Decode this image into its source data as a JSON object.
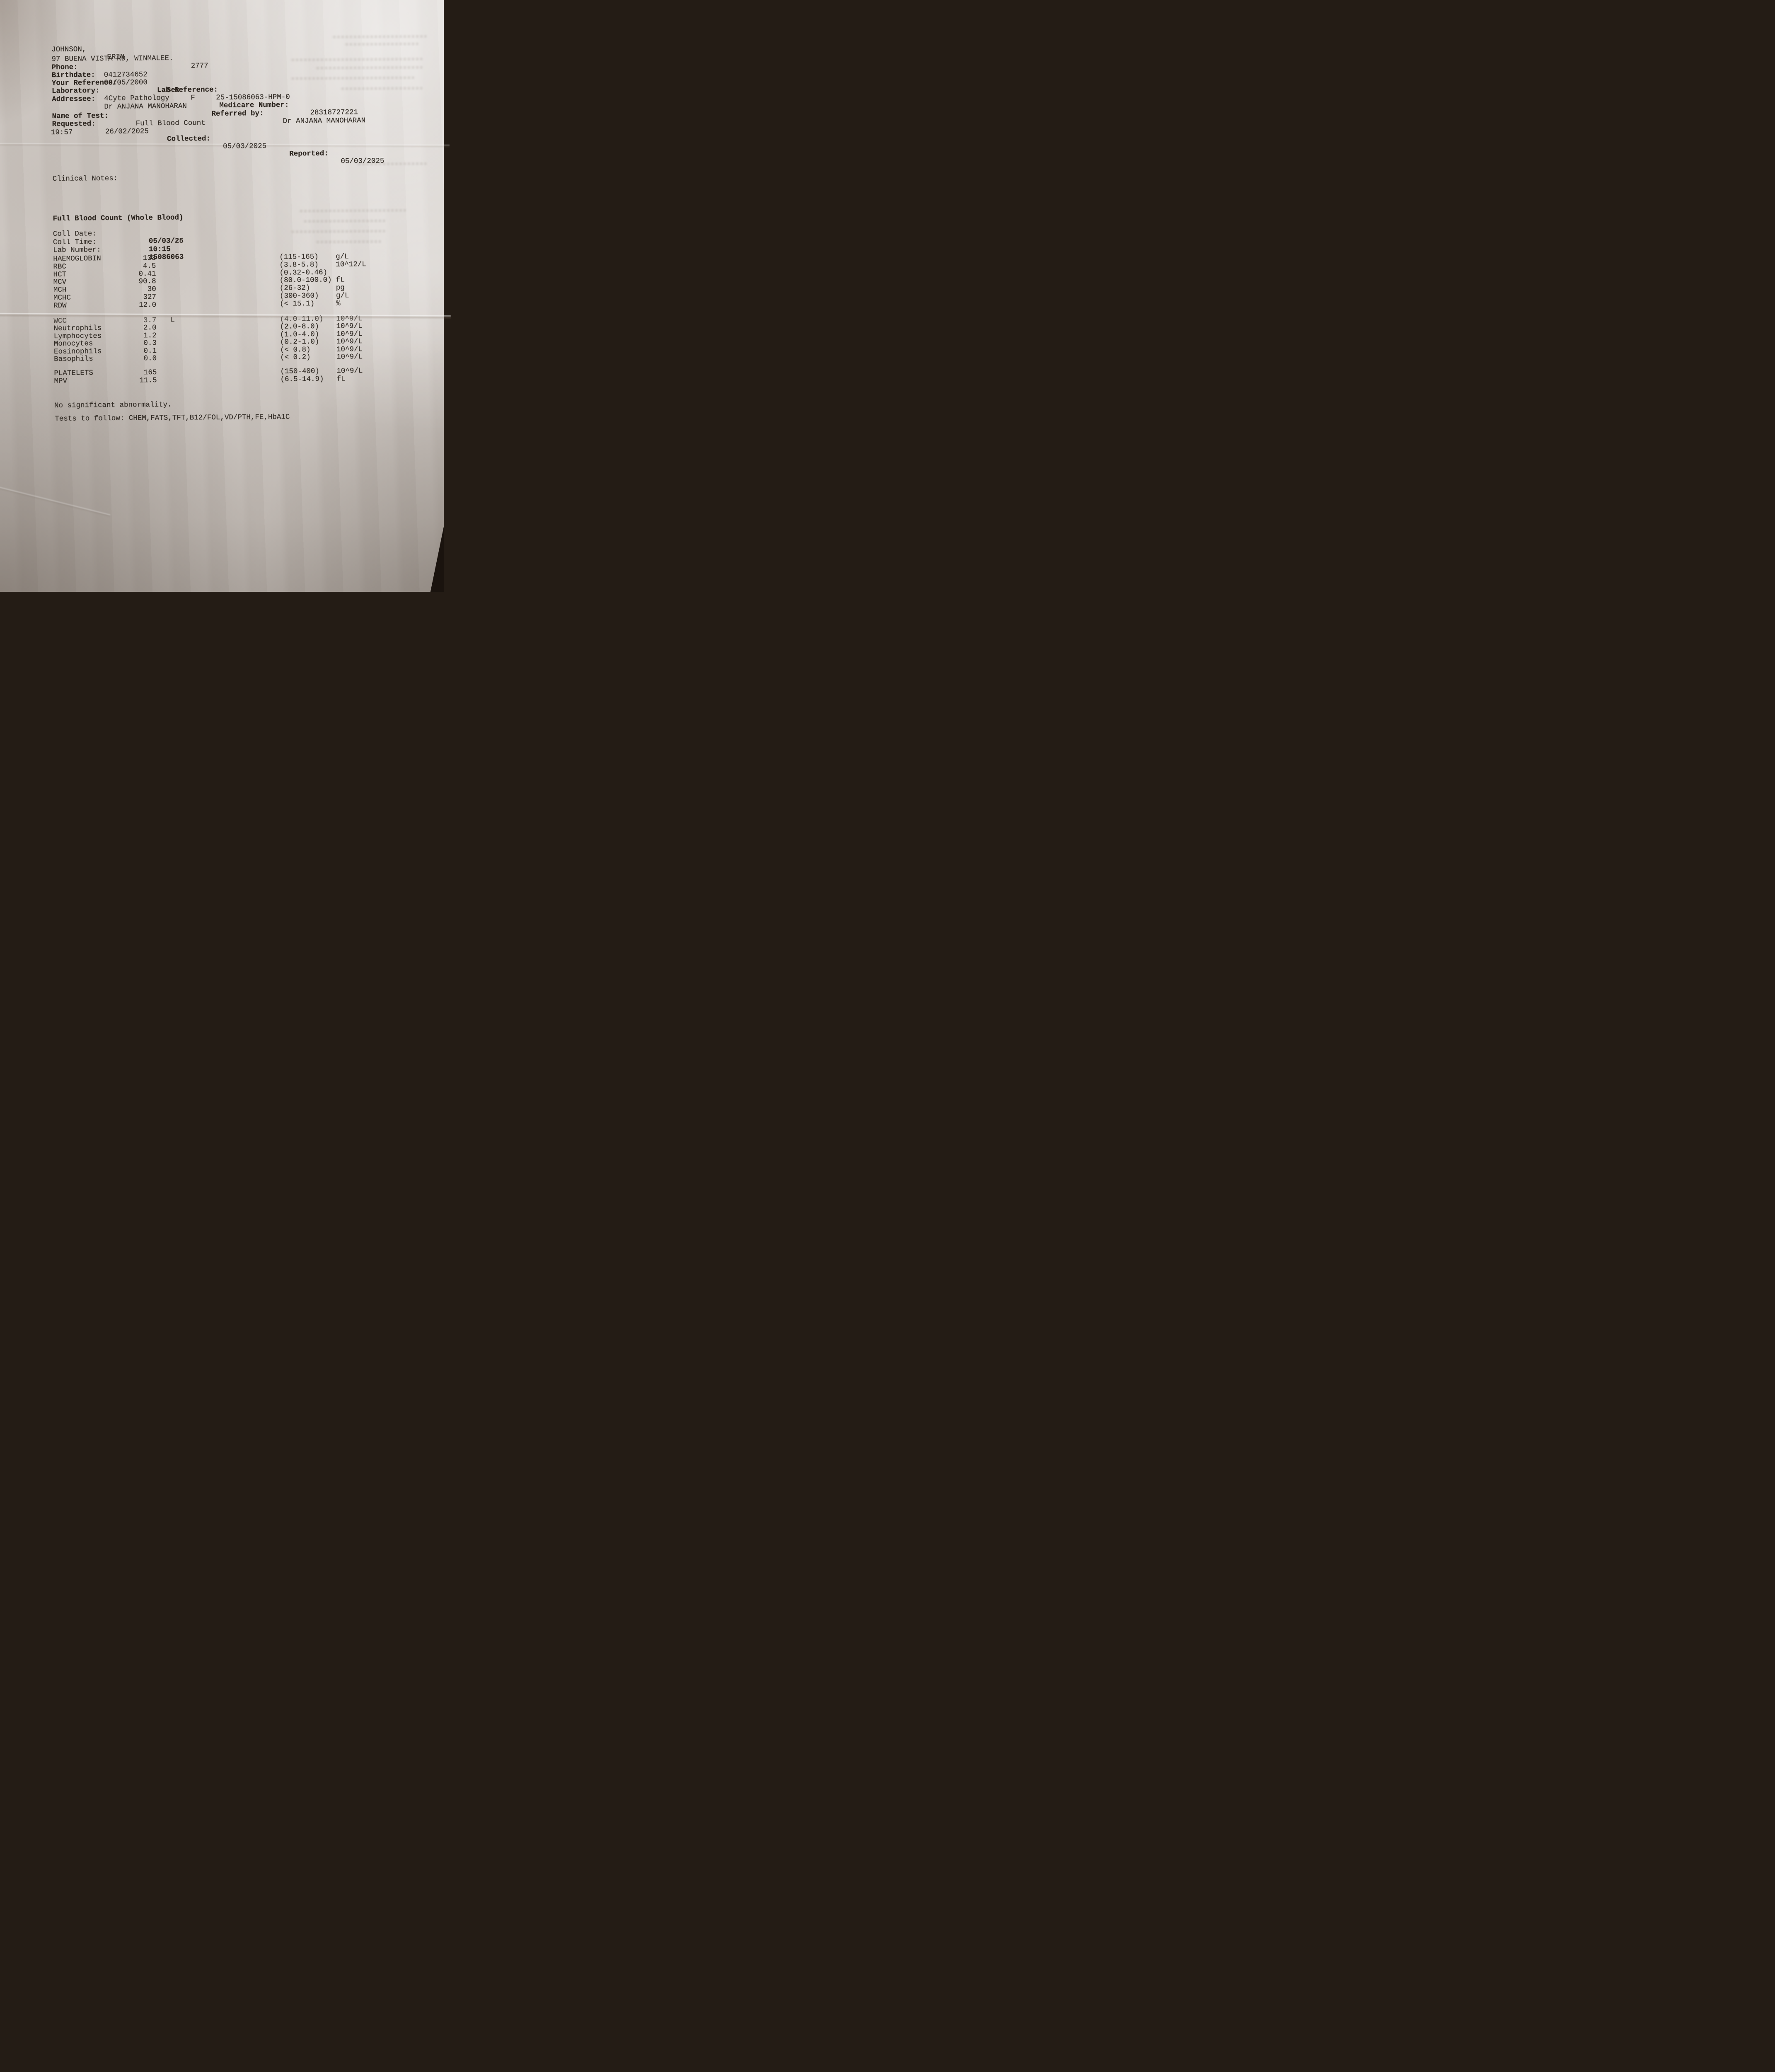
{
  "photo": {
    "paper_color": "#d3cdc8",
    "ink_color": "#322c26",
    "background_color": "#1a130e"
  },
  "report": {
    "patient": {
      "surname": "JOHNSON,",
      "given_name": "ERIN",
      "address": "97 BUENA VISTA RD, WINMALEE.",
      "postcode": "2777",
      "phone_label": "Phone:",
      "phone": "0412734652",
      "birthdate_label": "Birthdate:",
      "birthdate": "09/05/2000",
      "sex_label": "Sex:",
      "sex": "F",
      "medicare_label": "Medicare Number:",
      "medicare": "28318727221",
      "your_reference_label": "Your Reference:",
      "lab_reference_label": "Lab Reference:",
      "lab_reference": "25-15086063-HPM-0",
      "laboratory_label": "Laboratory:",
      "laboratory": "4Cyte Pathology",
      "addressee_label": "Addressee:",
      "addressee": "Dr ANJANA MANOHARAN",
      "referred_by_label": "Referred by:",
      "referred_by": "Dr ANJANA MANOHARAN"
    },
    "test": {
      "name_label": "Name of Test:",
      "name": "Full Blood Count",
      "requested_label": "Requested:",
      "requested": "26/02/2025",
      "collected_label": "Collected:",
      "collected": "05/03/2025",
      "reported_label": "Reported:",
      "reported": "05/03/2025",
      "reported_time": "19:57",
      "clinical_notes_label": "Clinical Notes:"
    },
    "fbc": {
      "title": "Full Blood Count (Whole Blood)",
      "coll_date_label": "Coll Date:",
      "coll_date": "05/03/25",
      "coll_time_label": "Coll Time:",
      "coll_time": "10:15",
      "lab_number_label": "Lab Number:",
      "lab_number": "15086063",
      "rows": [
        {
          "name": "HAEMOGLOBIN",
          "value": "133",
          "flag": "",
          "range": "(115-165)",
          "unit": "g/L"
        },
        {
          "name": "RBC",
          "value": "4.5",
          "flag": "",
          "range": "(3.8-5.8)",
          "unit": "10^12/L"
        },
        {
          "name": "HCT",
          "value": "0.41",
          "flag": "",
          "range": "(0.32-0.46)",
          "unit": ""
        },
        {
          "name": "MCV",
          "value": "90.8",
          "flag": "",
          "range": "(80.0-100.0)",
          "unit": "fL"
        },
        {
          "name": "MCH",
          "value": "30",
          "flag": "",
          "range": "(26-32)",
          "unit": "pg"
        },
        {
          "name": "MCHC",
          "value": "327",
          "flag": "",
          "range": "(300-360)",
          "unit": "g/L"
        },
        {
          "name": "RDW",
          "value": "12.0",
          "flag": "",
          "range": "(< 15.1)",
          "unit": "%"
        },
        {
          "name": "WCC",
          "value": "3.7",
          "flag": "L",
          "range": "(4.0-11.0)",
          "unit": "10^9/L"
        },
        {
          "name": "Neutrophils",
          "value": "2.0",
          "flag": "",
          "range": "(2.0-8.0)",
          "unit": "10^9/L"
        },
        {
          "name": "Lymphocytes",
          "value": "1.2",
          "flag": "",
          "range": "(1.0-4.0)",
          "unit": "10^9/L"
        },
        {
          "name": "Monocytes",
          "value": "0.3",
          "flag": "",
          "range": "(0.2-1.0)",
          "unit": "10^9/L"
        },
        {
          "name": "Eosinophils",
          "value": "0.1",
          "flag": "",
          "range": "(< 0.8)",
          "unit": "10^9/L"
        },
        {
          "name": "Basophils",
          "value": "0.0",
          "flag": "",
          "range": "(< 0.2)",
          "unit": "10^9/L"
        },
        {
          "name": "PLATELETS",
          "value": "165",
          "flag": "",
          "range": "(150-400)",
          "unit": "10^9/L"
        },
        {
          "name": "MPV",
          "value": "11.5",
          "flag": "",
          "range": "(6.5-14.9)",
          "unit": "fL"
        }
      ],
      "comment": "No significant abnormality.",
      "tests_to_follow": "Tests to follow: CHEM,FATS,TFT,B12/FOL,VD/PTH,FE,HbA1C"
    }
  }
}
